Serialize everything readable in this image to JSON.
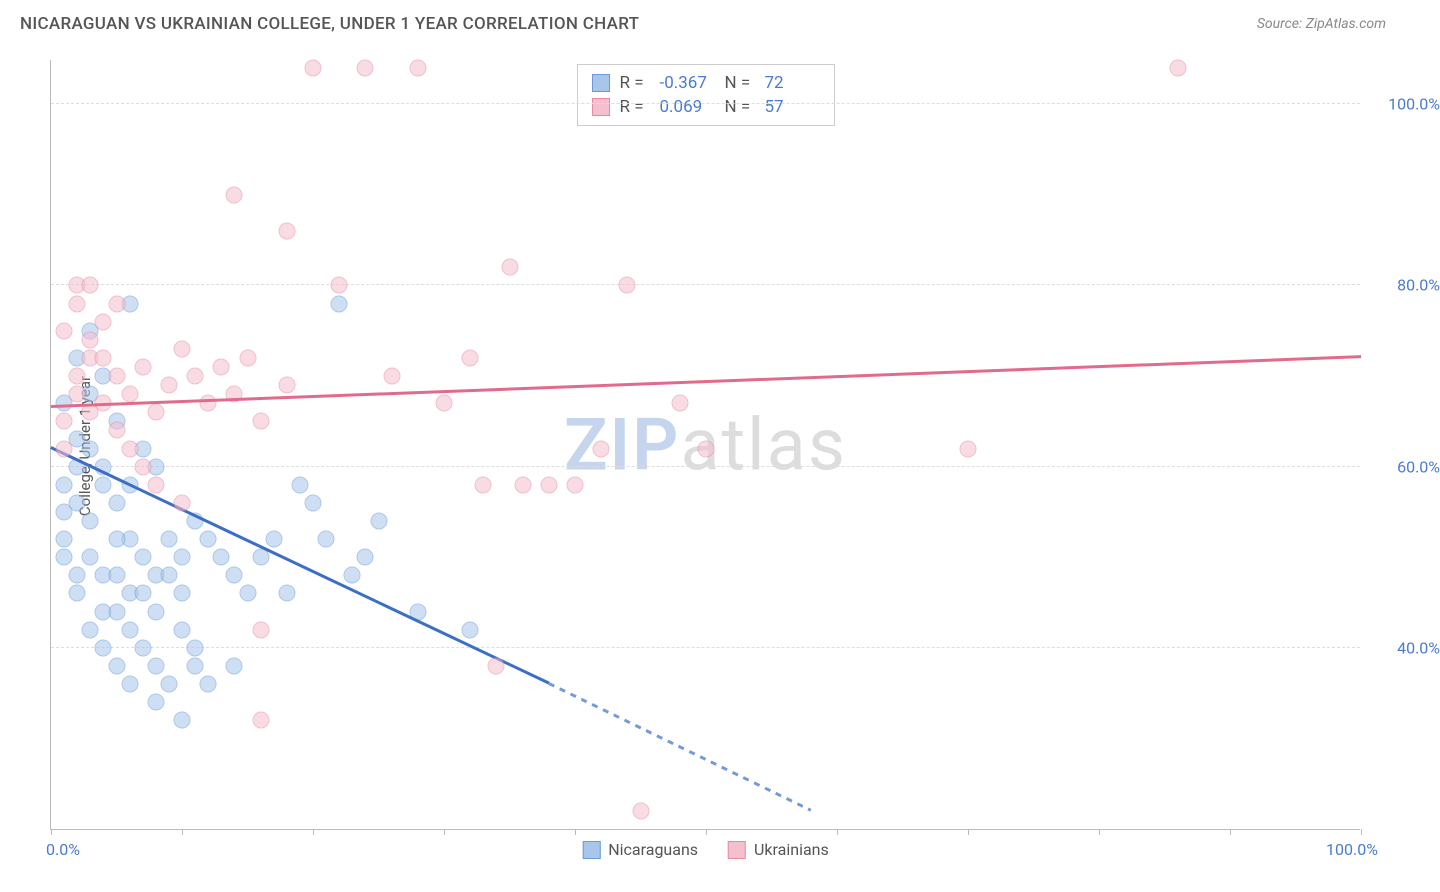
{
  "header": {
    "title": "NICARAGUAN VS UKRAINIAN COLLEGE, UNDER 1 YEAR CORRELATION CHART",
    "source_label": "Source:",
    "source_name": "ZipAtlas.com"
  },
  "chart": {
    "type": "scatter",
    "y_axis_title": "College, Under 1 year",
    "watermark": {
      "part1": "ZIP",
      "part2": "atlas"
    },
    "background_color": "#ffffff",
    "grid_color": "#dddddd",
    "axis_color": "#bbbbbb",
    "tick_label_color": "#4a7bd0",
    "xlim": [
      0,
      100
    ],
    "ylim": [
      20,
      105
    ],
    "x_ticks": [
      0,
      10,
      20,
      30,
      40,
      50,
      60,
      70,
      80,
      90,
      100
    ],
    "x_tick_labels": {
      "0": "0.0%",
      "100": "100.0%"
    },
    "y_gridlines": [
      40,
      60,
      80,
      100
    ],
    "y_tick_labels": {
      "40": "40.0%",
      "60": "60.0%",
      "80": "80.0%",
      "100": "100.0%"
    },
    "marker_radius": 8.5,
    "marker_opacity": 0.55,
    "line_width": 2.5,
    "series": [
      {
        "id": "nicaraguans",
        "label": "Nicaraguans",
        "color_fill": "#a8c5eb",
        "color_stroke": "#6a9bd8",
        "line_color": "#3b6fc4",
        "R": "-0.367",
        "N": "72",
        "trend": {
          "x1": 0,
          "y1": 62,
          "x2": 38,
          "y2": 36,
          "dashed_x2": 58,
          "dashed_y2": 22
        },
        "points": [
          [
            1,
            67
          ],
          [
            2,
            72
          ],
          [
            1,
            58
          ],
          [
            2,
            63
          ],
          [
            3,
            68
          ],
          [
            1,
            55
          ],
          [
            2,
            60
          ],
          [
            3,
            75
          ],
          [
            4,
            70
          ],
          [
            1,
            52
          ],
          [
            2,
            56
          ],
          [
            3,
            62
          ],
          [
            4,
            58
          ],
          [
            5,
            65
          ],
          [
            6,
            78
          ],
          [
            2,
            48
          ],
          [
            3,
            54
          ],
          [
            4,
            60
          ],
          [
            5,
            56
          ],
          [
            6,
            52
          ],
          [
            1,
            50
          ],
          [
            2,
            46
          ],
          [
            3,
            50
          ],
          [
            4,
            48
          ],
          [
            5,
            52
          ],
          [
            6,
            58
          ],
          [
            7,
            62
          ],
          [
            8,
            60
          ],
          [
            4,
            44
          ],
          [
            5,
            48
          ],
          [
            6,
            46
          ],
          [
            7,
            50
          ],
          [
            8,
            48
          ],
          [
            9,
            52
          ],
          [
            10,
            50
          ],
          [
            11,
            54
          ],
          [
            3,
            42
          ],
          [
            4,
            40
          ],
          [
            5,
            44
          ],
          [
            6,
            42
          ],
          [
            7,
            46
          ],
          [
            8,
            44
          ],
          [
            9,
            48
          ],
          [
            10,
            46
          ],
          [
            12,
            52
          ],
          [
            13,
            50
          ],
          [
            5,
            38
          ],
          [
            6,
            36
          ],
          [
            7,
            40
          ],
          [
            8,
            38
          ],
          [
            10,
            42
          ],
          [
            11,
            40
          ],
          [
            14,
            48
          ],
          [
            15,
            46
          ],
          [
            8,
            34
          ],
          [
            9,
            36
          ],
          [
            11,
            38
          ],
          [
            16,
            50
          ],
          [
            17,
            52
          ],
          [
            10,
            32
          ],
          [
            12,
            36
          ],
          [
            14,
            38
          ],
          [
            18,
            46
          ],
          [
            22,
            78
          ],
          [
            23,
            48
          ],
          [
            20,
            56
          ],
          [
            24,
            50
          ],
          [
            21,
            52
          ],
          [
            25,
            54
          ],
          [
            28,
            44
          ],
          [
            32,
            42
          ],
          [
            19,
            58
          ]
        ]
      },
      {
        "id": "ukrainians",
        "label": "Ukrainians",
        "color_fill": "#f5c0cd",
        "color_stroke": "#e58ba3",
        "line_color": "#e06b8c",
        "R": "0.069",
        "N": "57",
        "trend": {
          "x1": 0,
          "y1": 66.5,
          "x2": 100,
          "y2": 72
        },
        "points": [
          [
            1,
            75
          ],
          [
            2,
            68
          ],
          [
            3,
            72
          ],
          [
            1,
            65
          ],
          [
            2,
            70
          ],
          [
            4,
            67
          ],
          [
            2,
            80
          ],
          [
            3,
            66
          ],
          [
            5,
            70
          ],
          [
            1,
            62
          ],
          [
            3,
            74
          ],
          [
            4,
            72
          ],
          [
            6,
            68
          ],
          [
            2,
            78
          ],
          [
            5,
            64
          ],
          [
            7,
            71
          ],
          [
            3,
            80
          ],
          [
            8,
            66
          ],
          [
            4,
            76
          ],
          [
            9,
            69
          ],
          [
            10,
            73
          ],
          [
            6,
            62
          ],
          [
            11,
            70
          ],
          [
            5,
            78
          ],
          [
            12,
            67
          ],
          [
            13,
            71
          ],
          [
            7,
            60
          ],
          [
            14,
            68
          ],
          [
            15,
            72
          ],
          [
            8,
            58
          ],
          [
            16,
            65
          ],
          [
            10,
            56
          ],
          [
            18,
            69
          ],
          [
            20,
            104
          ],
          [
            24,
            104
          ],
          [
            28,
            104
          ],
          [
            14,
            90
          ],
          [
            18,
            86
          ],
          [
            22,
            80
          ],
          [
            26,
            70
          ],
          [
            30,
            67
          ],
          [
            33,
            58
          ],
          [
            36,
            58
          ],
          [
            38,
            58
          ],
          [
            42,
            62
          ],
          [
            32,
            72
          ],
          [
            34,
            38
          ],
          [
            16,
            42
          ],
          [
            16,
            32
          ],
          [
            45,
            22
          ],
          [
            44,
            80
          ],
          [
            48,
            67
          ],
          [
            50,
            62
          ],
          [
            35,
            82
          ],
          [
            40,
            58
          ],
          [
            70,
            62
          ],
          [
            86,
            104
          ]
        ]
      }
    ]
  },
  "stats_box": {
    "r_label": "R =",
    "n_label": "N ="
  }
}
